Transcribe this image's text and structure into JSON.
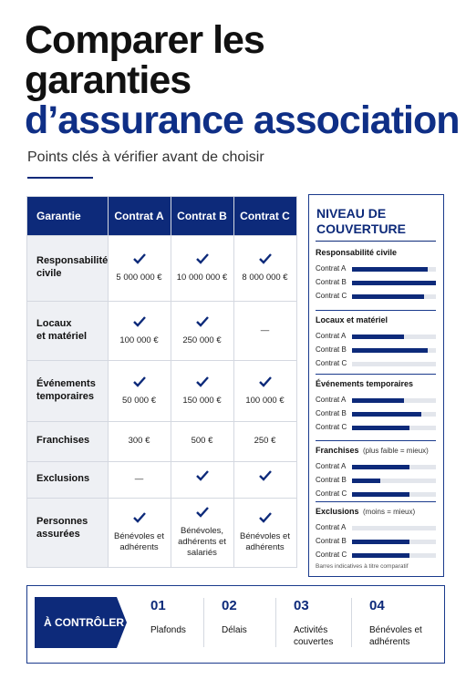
{
  "header": {
    "title_lines": [
      "Comparer les",
      "garanties",
      "d’assurance association"
    ],
    "subtitle": "Points clés à vérifier avant de choisir"
  },
  "table": {
    "columns": [
      "Garantie",
      "Contrat A",
      "Contrat B",
      "Contrat C"
    ],
    "rows": [
      {
        "label": [
          "Responsabilité",
          "civile"
        ],
        "cells": [
          {
            "check": true,
            "text": [
              "5 000 000 €"
            ]
          },
          {
            "check": true,
            "text": [
              "10 000 000 €"
            ]
          },
          {
            "check": true,
            "text": [
              "8 000 000 €"
            ]
          }
        ]
      },
      {
        "label": [
          "Locaux",
          "et matériel"
        ],
        "cells": [
          {
            "check": true,
            "text": [
              "100 000 €"
            ]
          },
          {
            "check": true,
            "text": [
              "250 000 €"
            ]
          },
          {
            "check": false,
            "text": [
              "—"
            ]
          }
        ]
      },
      {
        "label": [
          "Événements",
          "temporaires"
        ],
        "cells": [
          {
            "check": true,
            "text": [
              "50 000 €"
            ]
          },
          {
            "check": true,
            "text": [
              "150 000 €"
            ]
          },
          {
            "check": true,
            "text": [
              "100 000 €"
            ]
          }
        ]
      },
      {
        "label": [
          "Franchises"
        ],
        "cells": [
          {
            "check": false,
            "text": [
              "300 €"
            ]
          },
          {
            "check": false,
            "text": [
              "500 €"
            ]
          },
          {
            "check": false,
            "text": [
              "250 €"
            ]
          }
        ]
      },
      {
        "label": [
          "Exclusions"
        ],
        "cells": [
          {
            "check": false,
            "text": [
              "—"
            ]
          },
          {
            "check": true,
            "text": []
          },
          {
            "check": true,
            "text": []
          }
        ]
      },
      {
        "label": [
          "Personnes",
          "assurées"
        ],
        "cells": [
          {
            "check": true,
            "text": [
              "Bénévoles et",
              "adhérents"
            ]
          },
          {
            "check": true,
            "text": [
              "Bénévoles,",
              "adhérents et",
              "salariés"
            ]
          },
          {
            "check": true,
            "text": [
              "Bénévoles et",
              "adhérents"
            ]
          }
        ]
      }
    ]
  },
  "panel": {
    "title_lines": [
      "NIVEAU DE",
      "COUVERTURE"
    ],
    "groups": [
      {
        "title": "Responsabilité civile",
        "bars": [
          {
            "label": "Contrat A",
            "value": 90
          },
          {
            "label": "Contrat B",
            "value": 100
          },
          {
            "label": "Contrat C",
            "value": 86
          }
        ]
      },
      {
        "title": "Locaux et matériel",
        "bars": [
          {
            "label": "Contrat A",
            "value": 62
          },
          {
            "label": "Contrat B",
            "value": 90
          },
          {
            "label": "Contrat C",
            "value": 0
          }
        ]
      },
      {
        "title": "Événements temporaires",
        "bars": [
          {
            "label": "Contrat A",
            "value": 62
          },
          {
            "label": "Contrat B",
            "value": 83
          },
          {
            "label": "Contrat C",
            "value": 68
          }
        ]
      },
      {
        "title": "Franchises",
        "note": "(plus faible = mieux)",
        "bars": [
          {
            "label": "Contrat A",
            "value": 68
          },
          {
            "label": "Contrat B",
            "value": 34
          },
          {
            "label": "Contrat C",
            "value": 68
          }
        ]
      },
      {
        "title": "Exclusions",
        "note": "(moins = mieux)",
        "bars": [
          {
            "label": "Contrat A",
            "value": 0
          },
          {
            "label": "Contrat B",
            "value": 68
          },
          {
            "label": "Contrat C",
            "value": 68
          }
        ]
      }
    ],
    "scale_max": 100,
    "footnote": "Barres indicatives à titre comparatif"
  },
  "checklist": {
    "label": "À CONTRÔLER",
    "items": [
      {
        "number": "01",
        "text": [
          "Plafonds"
        ]
      },
      {
        "number": "02",
        "text": [
          "Délais"
        ]
      },
      {
        "number": "03",
        "text": [
          "Activités",
          "couvertes"
        ]
      },
      {
        "number": "04",
        "text": [
          "Bénévoles et",
          "adhérents"
        ]
      }
    ]
  }
}
